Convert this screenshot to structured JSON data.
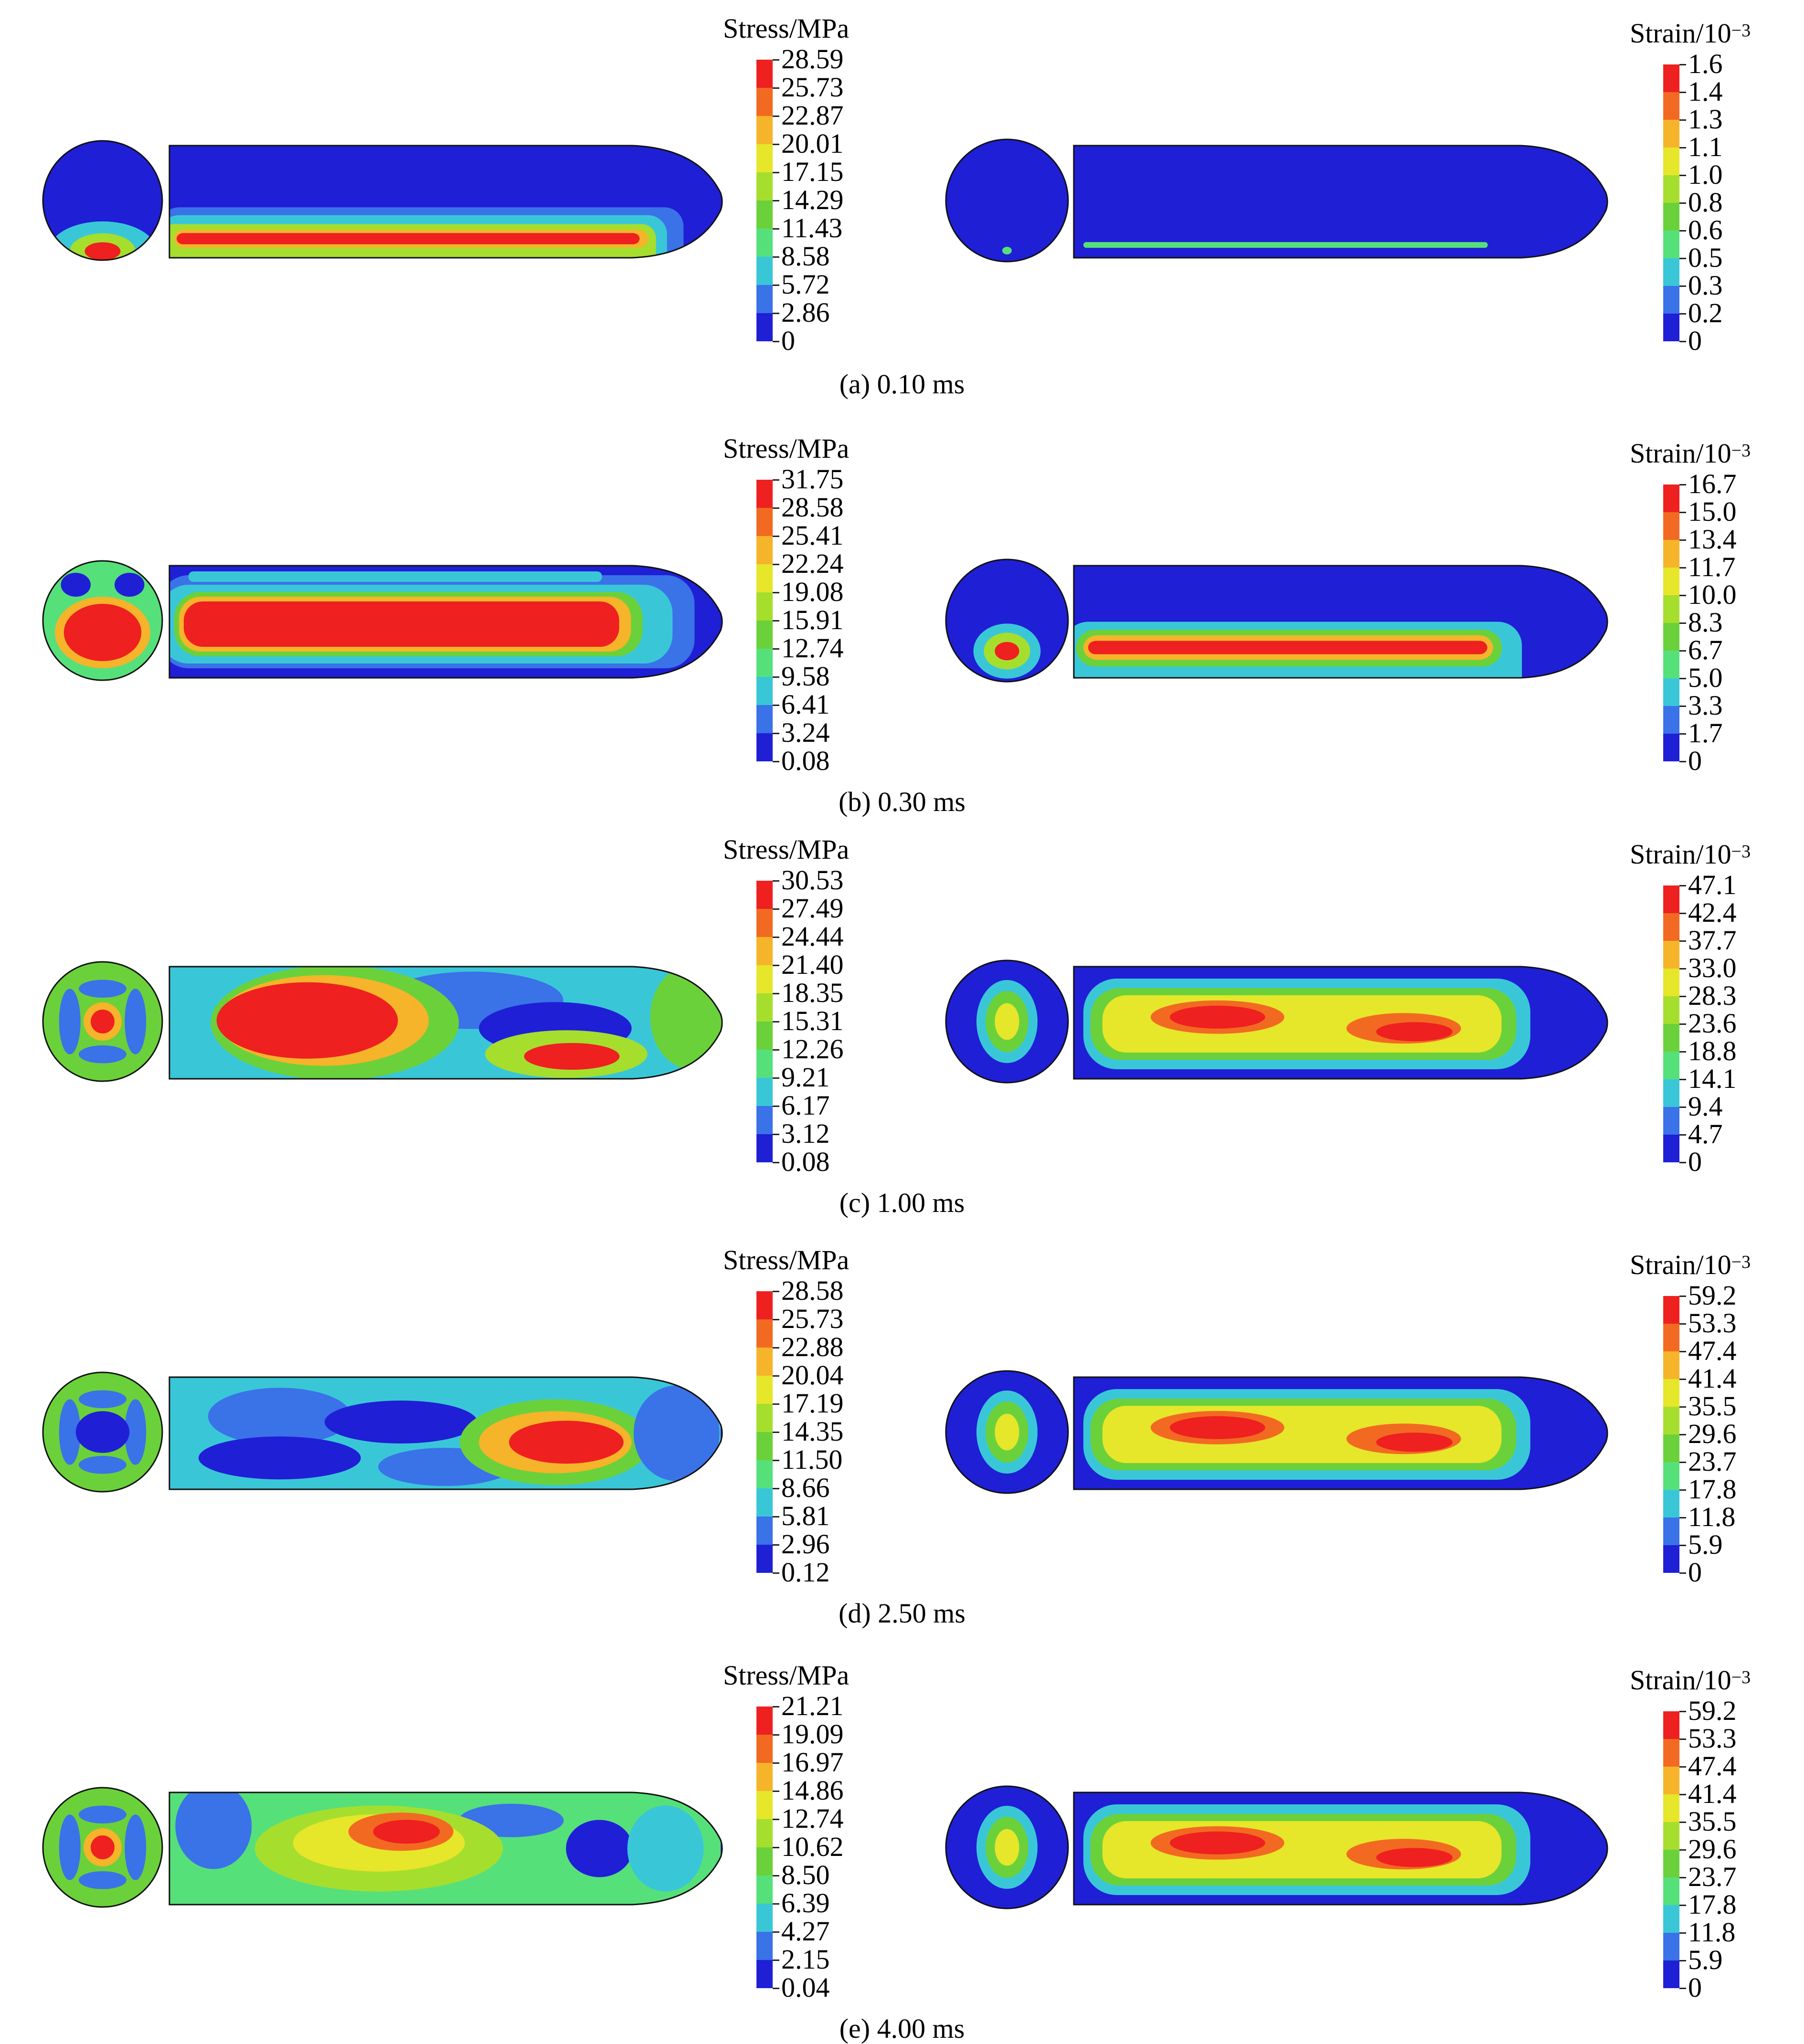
{
  "colormap": [
    "#1f1fd6",
    "#3a72e8",
    "#39c7d8",
    "#56e07a",
    "#6bd13a",
    "#a6de2e",
    "#e6e62a",
    "#f5b42a",
    "#f26a21",
    "#ee2020"
  ],
  "outline_color": "#111111",
  "stress_title_main": "Stress/MPa",
  "strain_title_main": "Strain/10",
  "strain_title_exp": "−3",
  "panels": [
    {
      "caption": "(a) 0.10 ms",
      "stress_ticks": [
        "28.59",
        "25.73",
        "22.87",
        "20.01",
        "17.15",
        "14.29",
        "11.43",
        "8.58",
        "5.72",
        "2.86",
        "0"
      ],
      "strain_ticks": [
        "1.6",
        "1.4",
        "1.3",
        "1.1",
        "1.0",
        "0.8",
        "0.6",
        "0.5",
        "0.3",
        "0.2",
        "0"
      ],
      "stress_pattern": "bottom-band",
      "strain_pattern": "thin-line"
    },
    {
      "caption": "(b) 0.30 ms",
      "stress_ticks": [
        "31.75",
        "28.58",
        "25.41",
        "22.24",
        "19.08",
        "15.91",
        "12.74",
        "9.58",
        "6.41",
        "3.24",
        "0.08"
      ],
      "strain_ticks": [
        "16.7",
        "15.0",
        "13.4",
        "11.7",
        "10.0",
        "8.3",
        "6.7",
        "5.0",
        "3.3",
        "1.7",
        "0"
      ],
      "stress_pattern": "full-core",
      "strain_pattern": "lower-band"
    },
    {
      "caption": "(c) 1.00 ms",
      "stress_ticks": [
        "30.53",
        "27.49",
        "24.44",
        "21.40",
        "18.35",
        "15.31",
        "12.26",
        "9.21",
        "6.17",
        "3.12",
        "0.08"
      ],
      "strain_ticks": [
        "47.1",
        "42.4",
        "37.7",
        "33.0",
        "28.3",
        "23.6",
        "18.8",
        "14.1",
        "9.4",
        "4.7",
        "0"
      ],
      "stress_pattern": "patchy-left",
      "strain_pattern": "core-band"
    },
    {
      "caption": "(d) 2.50 ms",
      "stress_ticks": [
        "28.58",
        "25.73",
        "22.88",
        "20.04",
        "17.19",
        "14.35",
        "11.50",
        "8.66",
        "5.81",
        "2.96",
        "0.12"
      ],
      "strain_ticks": [
        "59.2",
        "53.3",
        "47.4",
        "41.4",
        "35.5",
        "29.6",
        "23.7",
        "17.8",
        "11.8",
        "5.9",
        "0"
      ],
      "stress_pattern": "patchy-right",
      "strain_pattern": "core-band"
    },
    {
      "caption": "(e) 4.00 ms",
      "stress_ticks": [
        "21.21",
        "19.09",
        "16.97",
        "14.86",
        "12.74",
        "10.62",
        "8.50",
        "6.39",
        "4.27",
        "2.15",
        "0.04"
      ],
      "strain_ticks": [
        "59.2",
        "53.3",
        "47.4",
        "41.4",
        "35.5",
        "29.6",
        "23.7",
        "17.8",
        "11.8",
        "5.9",
        "0"
      ],
      "stress_pattern": "mixed-mid",
      "strain_pattern": "core-band"
    }
  ]
}
